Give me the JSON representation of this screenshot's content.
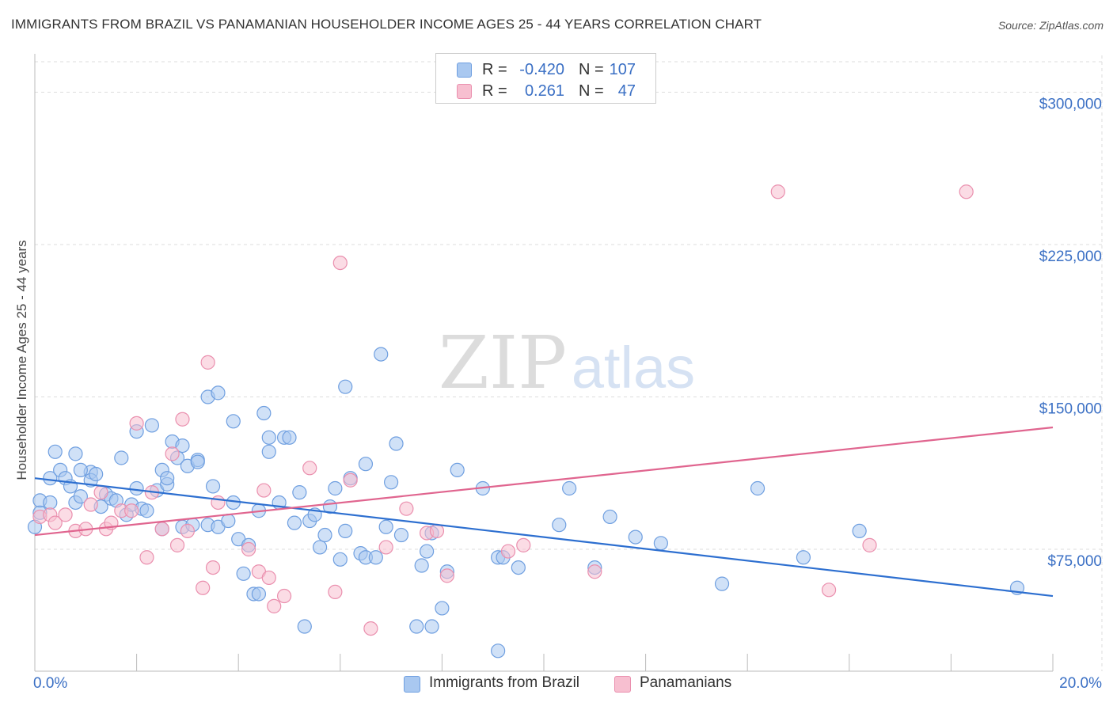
{
  "title": "IMMIGRANTS FROM BRAZIL VS PANAMANIAN HOUSEHOLDER INCOME AGES 25 - 44 YEARS CORRELATION CHART",
  "source": "Source: ZipAtlas.com",
  "watermark": {
    "zip": "ZIP",
    "atlas": "atlas"
  },
  "colors": {
    "blue": "#3a6fc4",
    "blue_line": "#2d6fd0",
    "blue_fill": "#a9c8f0",
    "blue_stroke": "#6f9fe0",
    "pink": "#e0658f",
    "pink_fill": "#f7bfd0",
    "pink_stroke": "#ea8fae",
    "grid": "#dddddd",
    "axis_label": "#3a6fc4"
  },
  "legend": [
    {
      "r_label": "R =",
      "r_value": "-0.420",
      "n_label": "N =",
      "n_value": "107"
    },
    {
      "r_label": "R =",
      "r_value": "0.261",
      "n_label": "N =",
      "n_value": "47"
    }
  ],
  "bottom_legend": [
    "Immigrants from Brazil",
    "Panamanians"
  ],
  "chart_data": {
    "type": "scatter",
    "title": "IMMIGRANTS FROM BRAZIL VS PANAMANIAN HOUSEHOLDER INCOME AGES 25 - 44 YEARS CORRELATION CHART",
    "xlabel": "",
    "ylabel": "Householder Income Ages 25 - 44 years",
    "xlim": [
      0,
      20
    ],
    "ylim": [
      15000,
      315000
    ],
    "x_tick_labels": [
      "0.0%",
      "20.0%"
    ],
    "y_ticks": [
      75000,
      150000,
      225000,
      300000
    ],
    "y_tick_labels": [
      "$75,000",
      "$150,000",
      "$225,000",
      "$300,000"
    ],
    "grid": true,
    "legend_placement": "top-center",
    "series": [
      {
        "name": "Immigrants from Brazil",
        "r": -0.42,
        "n": 107,
        "trend": [
          [
            0,
            110000
          ],
          [
            20,
            52000
          ]
        ],
        "points": [
          [
            0.0,
            86000
          ],
          [
            0.1,
            99000
          ],
          [
            0.1,
            93000
          ],
          [
            0.3,
            110000
          ],
          [
            0.4,
            123000
          ],
          [
            0.5,
            114000
          ],
          [
            0.6,
            110000
          ],
          [
            0.7,
            106000
          ],
          [
            0.8,
            122000
          ],
          [
            0.8,
            98000
          ],
          [
            0.9,
            101000
          ],
          [
            1.1,
            113000
          ],
          [
            1.1,
            109000
          ],
          [
            1.2,
            112000
          ],
          [
            1.3,
            96000
          ],
          [
            1.4,
            102000
          ],
          [
            1.5,
            100000
          ],
          [
            1.6,
            99000
          ],
          [
            1.7,
            120000
          ],
          [
            1.8,
            92000
          ],
          [
            1.9,
            97000
          ],
          [
            2.0,
            105000
          ],
          [
            2.0,
            133000
          ],
          [
            2.1,
            95000
          ],
          [
            2.2,
            94000
          ],
          [
            2.3,
            136000
          ],
          [
            2.4,
            104000
          ],
          [
            2.5,
            114000
          ],
          [
            2.5,
            85000
          ],
          [
            2.6,
            107000
          ],
          [
            2.6,
            110000
          ],
          [
            2.7,
            128000
          ],
          [
            2.8,
            120000
          ],
          [
            2.9,
            86000
          ],
          [
            3.0,
            116000
          ],
          [
            3.1,
            87000
          ],
          [
            3.2,
            119000
          ],
          [
            3.2,
            118000
          ],
          [
            3.4,
            87000
          ],
          [
            3.4,
            150000
          ],
          [
            3.5,
            106000
          ],
          [
            3.6,
            86000
          ],
          [
            3.6,
            152000
          ],
          [
            3.8,
            89000
          ],
          [
            3.9,
            98000
          ],
          [
            3.9,
            138000
          ],
          [
            4.0,
            80000
          ],
          [
            4.1,
            63000
          ],
          [
            4.2,
            77000
          ],
          [
            4.3,
            53000
          ],
          [
            4.4,
            53000
          ],
          [
            4.4,
            94000
          ],
          [
            4.5,
            142000
          ],
          [
            4.6,
            123000
          ],
          [
            4.6,
            130000
          ],
          [
            4.8,
            98000
          ],
          [
            4.9,
            130000
          ],
          [
            5.0,
            130000
          ],
          [
            5.1,
            88000
          ],
          [
            5.2,
            103000
          ],
          [
            5.3,
            37000
          ],
          [
            5.4,
            89000
          ],
          [
            5.5,
            92000
          ],
          [
            5.6,
            76000
          ],
          [
            5.7,
            82000
          ],
          [
            5.8,
            96000
          ],
          [
            5.9,
            105000
          ],
          [
            6.0,
            70000
          ],
          [
            6.1,
            84000
          ],
          [
            6.1,
            155000
          ],
          [
            6.2,
            110000
          ],
          [
            6.4,
            73000
          ],
          [
            6.5,
            71000
          ],
          [
            6.5,
            117000
          ],
          [
            6.7,
            71000
          ],
          [
            6.8,
            171000
          ],
          [
            6.9,
            86000
          ],
          [
            7.0,
            108000
          ],
          [
            7.1,
            127000
          ],
          [
            7.2,
            82000
          ],
          [
            7.5,
            37000
          ],
          [
            7.6,
            67000
          ],
          [
            7.7,
            74000
          ],
          [
            7.8,
            37000
          ],
          [
            7.8,
            83000
          ],
          [
            8.0,
            46000
          ],
          [
            8.1,
            64000
          ],
          [
            8.3,
            114000
          ],
          [
            8.8,
            105000
          ],
          [
            9.1,
            25000
          ],
          [
            9.1,
            71000
          ],
          [
            9.2,
            71000
          ],
          [
            9.5,
            66000
          ],
          [
            10.3,
            87000
          ],
          [
            10.5,
            105000
          ],
          [
            11.0,
            66000
          ],
          [
            11.3,
            91000
          ],
          [
            11.8,
            81000
          ],
          [
            12.3,
            78000
          ],
          [
            13.5,
            58000
          ],
          [
            14.2,
            105000
          ],
          [
            15.1,
            71000
          ],
          [
            16.2,
            84000
          ],
          [
            19.3,
            56000
          ],
          [
            0.3,
            98000
          ],
          [
            0.9,
            114000
          ],
          [
            2.9,
            126000
          ]
        ]
      },
      {
        "name": "Panamanians",
        "r": 0.261,
        "n": 47,
        "trend": [
          [
            0,
            82000
          ],
          [
            20,
            135000
          ]
        ],
        "points": [
          [
            0.1,
            91000
          ],
          [
            0.3,
            92000
          ],
          [
            0.4,
            88000
          ],
          [
            0.6,
            92000
          ],
          [
            0.8,
            84000
          ],
          [
            1.0,
            85000
          ],
          [
            1.1,
            97000
          ],
          [
            1.3,
            103000
          ],
          [
            1.4,
            85000
          ],
          [
            1.5,
            88000
          ],
          [
            1.7,
            94000
          ],
          [
            1.9,
            94000
          ],
          [
            2.0,
            137000
          ],
          [
            2.2,
            71000
          ],
          [
            2.3,
            103000
          ],
          [
            2.5,
            85000
          ],
          [
            2.7,
            122000
          ],
          [
            2.8,
            77000
          ],
          [
            2.9,
            139000
          ],
          [
            3.0,
            84000
          ],
          [
            3.3,
            56000
          ],
          [
            3.4,
            167000
          ],
          [
            3.5,
            66000
          ],
          [
            3.6,
            98000
          ],
          [
            4.2,
            75000
          ],
          [
            4.4,
            64000
          ],
          [
            4.5,
            104000
          ],
          [
            4.6,
            61000
          ],
          [
            4.7,
            47000
          ],
          [
            4.9,
            52000
          ],
          [
            5.4,
            115000
          ],
          [
            5.9,
            54000
          ],
          [
            6.0,
            216000
          ],
          [
            6.2,
            109000
          ],
          [
            6.6,
            36000
          ],
          [
            6.9,
            76000
          ],
          [
            7.3,
            95000
          ],
          [
            7.7,
            83000
          ],
          [
            7.9,
            84000
          ],
          [
            8.1,
            62000
          ],
          [
            9.3,
            74000
          ],
          [
            9.6,
            77000
          ],
          [
            11.0,
            64000
          ],
          [
            14.6,
            251000
          ],
          [
            15.6,
            55000
          ],
          [
            16.4,
            77000
          ],
          [
            18.3,
            251000
          ]
        ]
      }
    ]
  }
}
